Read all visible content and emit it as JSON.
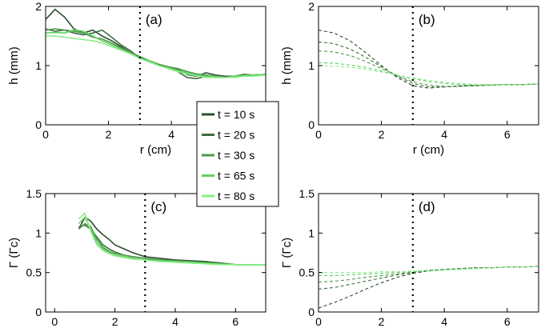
{
  "chart_data": [
    {
      "panel": "(a)",
      "type": "line",
      "xlabel": "r (cm)",
      "ylabel": "h (mm)",
      "xlim": [
        0,
        7
      ],
      "ylim": [
        0,
        2
      ],
      "xticks": [
        "0",
        "2",
        "4",
        ""
      ],
      "yticks": [
        "0",
        "1",
        "2"
      ],
      "vline_x": 3,
      "series": [
        {
          "name": "t = 10 s",
          "color": "#2e4d2e",
          "x": [
            0.0,
            0.3,
            0.6,
            0.9,
            1.2,
            1.5,
            1.8,
            2.1,
            2.4,
            2.7,
            3.0,
            3.3,
            3.6,
            3.9,
            4.2,
            4.5,
            4.8,
            5.1,
            5.4,
            5.7,
            6.0,
            6.3,
            6.6,
            7.0
          ],
          "y": [
            1.78,
            1.95,
            1.82,
            1.62,
            1.55,
            1.6,
            1.5,
            1.42,
            1.32,
            1.22,
            1.15,
            1.08,
            1.02,
            0.98,
            0.94,
            0.85,
            0.82,
            0.88,
            0.84,
            0.82,
            0.82,
            0.85,
            0.84,
            0.85
          ]
        },
        {
          "name": "t = 20 s",
          "color": "#3c6e3c",
          "x": [
            0.0,
            0.3,
            0.6,
            0.9,
            1.2,
            1.5,
            1.8,
            2.1,
            2.4,
            2.7,
            3.0,
            3.3,
            3.6,
            3.9,
            4.2,
            4.5,
            4.8,
            5.1,
            5.4,
            5.7,
            6.0,
            6.3,
            6.6,
            7.0
          ],
          "y": [
            1.62,
            1.58,
            1.6,
            1.55,
            1.52,
            1.55,
            1.6,
            1.48,
            1.35,
            1.25,
            1.12,
            1.08,
            1.02,
            0.95,
            0.9,
            0.8,
            0.78,
            0.82,
            0.8,
            0.8,
            0.82,
            0.84,
            0.84,
            0.85
          ]
        },
        {
          "name": "t = 30 s",
          "color": "#4f9a4f",
          "x": [
            0.0,
            0.3,
            0.6,
            0.9,
            1.2,
            1.5,
            1.8,
            2.1,
            2.4,
            2.7,
            3.0,
            3.3,
            3.6,
            3.9,
            4.2,
            4.5,
            4.8,
            5.1,
            5.4,
            5.7,
            6.0,
            6.3,
            6.6,
            7.0
          ],
          "y": [
            1.6,
            1.62,
            1.6,
            1.58,
            1.55,
            1.48,
            1.45,
            1.38,
            1.3,
            1.22,
            1.15,
            1.08,
            1.02,
            0.98,
            0.95,
            0.9,
            0.86,
            0.84,
            0.82,
            0.8,
            0.82,
            0.84,
            0.84,
            0.85
          ]
        },
        {
          "name": "t = 65 s",
          "color": "#63cf63",
          "x": [
            0.0,
            0.3,
            0.6,
            0.9,
            1.2,
            1.5,
            1.8,
            2.1,
            2.4,
            2.7,
            3.0,
            3.3,
            3.6,
            3.9,
            4.2,
            4.5,
            4.8,
            5.1,
            5.4,
            5.7,
            6.0,
            6.3,
            6.6,
            7.0
          ],
          "y": [
            1.55,
            1.56,
            1.55,
            1.6,
            1.58,
            1.5,
            1.42,
            1.35,
            1.28,
            1.2,
            1.12,
            1.08,
            1.0,
            0.96,
            0.92,
            0.88,
            0.84,
            0.82,
            0.82,
            0.8,
            0.82,
            0.83,
            0.84,
            0.85
          ]
        },
        {
          "name": "t = 80 s",
          "color": "#86ef86",
          "x": [
            0.0,
            0.3,
            0.6,
            0.9,
            1.2,
            1.5,
            1.8,
            2.1,
            2.4,
            2.7,
            3.0,
            3.3,
            3.6,
            3.9,
            4.2,
            4.5,
            4.8,
            5.1,
            5.4,
            5.7,
            6.0,
            6.3,
            6.6,
            7.0
          ],
          "y": [
            1.5,
            1.5,
            1.48,
            1.46,
            1.44,
            1.42,
            1.38,
            1.32,
            1.26,
            1.2,
            1.12,
            1.06,
            1.0,
            0.95,
            0.9,
            0.86,
            0.83,
            0.8,
            0.8,
            0.8,
            0.8,
            0.82,
            0.82,
            0.84
          ]
        }
      ]
    },
    {
      "panel": "(b)",
      "type": "line",
      "xlabel": "r (cm)",
      "ylabel": "h (mm)",
      "xlim": [
        0,
        7
      ],
      "ylim": [
        0,
        2
      ],
      "xticks": [
        "0",
        "2",
        "4",
        "6"
      ],
      "yticks": [
        "0",
        "1",
        "2"
      ],
      "vline_x": 3,
      "dashed": true,
      "series": [
        {
          "name": "t = 10 s",
          "color": "#2e4d2e",
          "x": [
            0,
            0.5,
            1,
            1.5,
            2,
            2.5,
            3,
            3.5,
            4,
            4.5,
            5,
            5.5,
            6,
            6.5,
            7
          ],
          "y": [
            1.6,
            1.55,
            1.42,
            1.22,
            1.0,
            0.8,
            0.66,
            0.62,
            0.64,
            0.66,
            0.67,
            0.67,
            0.68,
            0.68,
            0.69
          ]
        },
        {
          "name": "t = 20 s",
          "color": "#3c6e3c",
          "x": [
            0,
            0.5,
            1,
            1.5,
            2,
            2.5,
            3,
            3.5,
            4,
            4.5,
            5,
            5.5,
            6,
            6.5,
            7
          ],
          "y": [
            1.4,
            1.37,
            1.28,
            1.14,
            0.98,
            0.82,
            0.7,
            0.64,
            0.64,
            0.65,
            0.66,
            0.67,
            0.68,
            0.68,
            0.69
          ]
        },
        {
          "name": "t = 30 s",
          "color": "#4f9a4f",
          "x": [
            0,
            0.5,
            1,
            1.5,
            2,
            2.5,
            3,
            3.5,
            4,
            4.5,
            5,
            5.5,
            6,
            6.5,
            7
          ],
          "y": [
            1.25,
            1.23,
            1.17,
            1.07,
            0.95,
            0.83,
            0.73,
            0.67,
            0.65,
            0.65,
            0.66,
            0.67,
            0.68,
            0.68,
            0.69
          ]
        },
        {
          "name": "t = 65 s",
          "color": "#63cf63",
          "x": [
            0,
            0.5,
            1,
            1.5,
            2,
            2.5,
            3,
            3.5,
            4,
            4.5,
            5,
            5.5,
            6,
            6.5,
            7
          ],
          "y": [
            1.05,
            1.04,
            1.01,
            0.97,
            0.91,
            0.84,
            0.78,
            0.73,
            0.7,
            0.68,
            0.67,
            0.67,
            0.68,
            0.68,
            0.69
          ]
        },
        {
          "name": "t = 80 s",
          "color": "#86ef86",
          "x": [
            0,
            0.5,
            1,
            1.5,
            2,
            2.5,
            3,
            3.5,
            4,
            4.5,
            5,
            5.5,
            6,
            6.5,
            7
          ],
          "y": [
            1.0,
            0.99,
            0.97,
            0.94,
            0.89,
            0.84,
            0.79,
            0.75,
            0.72,
            0.7,
            0.68,
            0.68,
            0.68,
            0.68,
            0.69
          ]
        }
      ]
    },
    {
      "panel": "(c)",
      "type": "line",
      "xlabel": "r (cm)",
      "ylabel": "Γ (Γc)",
      "xlim": [
        -0.3,
        7
      ],
      "ylim": [
        0,
        1.5
      ],
      "xticks": [
        "0",
        "2",
        "4",
        "6"
      ],
      "yticks": [
        "0",
        "0.5",
        "1",
        "1.5"
      ],
      "vline_x": 3,
      "series": [
        {
          "name": "t = 10 s",
          "color": "#2e4d2e",
          "x": [
            0.8,
            1.0,
            1.2,
            1.4,
            1.6,
            1.8,
            2.0,
            2.3,
            2.6,
            3.0,
            3.5,
            4.0,
            4.5,
            5.0,
            5.5,
            6.0,
            6.5,
            7.0
          ],
          "y": [
            1.05,
            1.2,
            1.15,
            1.05,
            0.98,
            0.92,
            0.85,
            0.8,
            0.75,
            0.7,
            0.68,
            0.66,
            0.65,
            0.64,
            0.62,
            0.6,
            0.6,
            0.6
          ]
        },
        {
          "name": "t = 20 s",
          "color": "#3c6e3c",
          "x": [
            0.8,
            1.0,
            1.2,
            1.4,
            1.6,
            1.8,
            2.0,
            2.3,
            2.6,
            3.0,
            3.5,
            4.0,
            4.5,
            5.0,
            5.5,
            6.0,
            6.5,
            7.0
          ],
          "y": [
            1.08,
            1.1,
            1.05,
            0.95,
            0.85,
            0.8,
            0.76,
            0.72,
            0.7,
            0.68,
            0.66,
            0.65,
            0.64,
            0.63,
            0.62,
            0.6,
            0.6,
            0.6
          ]
        },
        {
          "name": "t = 30 s",
          "color": "#4f9a4f",
          "x": [
            0.8,
            1.0,
            1.2,
            1.4,
            1.6,
            1.8,
            2.0,
            2.3,
            2.6,
            3.0,
            3.5,
            4.0,
            4.5,
            5.0,
            5.5,
            6.0,
            6.5,
            7.0
          ],
          "y": [
            1.05,
            1.12,
            1.08,
            0.92,
            0.82,
            0.77,
            0.74,
            0.72,
            0.7,
            0.68,
            0.66,
            0.65,
            0.64,
            0.62,
            0.61,
            0.6,
            0.6,
            0.6
          ]
        },
        {
          "name": "t = 65 s",
          "color": "#63cf63",
          "x": [
            0.8,
            1.0,
            1.2,
            1.4,
            1.6,
            1.8,
            2.0,
            2.3,
            2.6,
            3.0,
            3.5,
            4.0,
            4.5,
            5.0,
            5.5,
            6.0,
            6.5,
            7.0
          ],
          "y": [
            1.12,
            1.2,
            1.05,
            0.88,
            0.8,
            0.75,
            0.72,
            0.7,
            0.68,
            0.66,
            0.65,
            0.64,
            0.63,
            0.62,
            0.61,
            0.6,
            0.6,
            0.6
          ]
        },
        {
          "name": "t = 80 s",
          "color": "#86ef86",
          "x": [
            0.8,
            1.0,
            1.2,
            1.4,
            1.6,
            1.8,
            2.0,
            2.3,
            2.6,
            3.0,
            3.5,
            4.0,
            4.5,
            5.0,
            5.5,
            6.0,
            6.5,
            7.0
          ],
          "y": [
            1.18,
            1.25,
            1.02,
            0.85,
            0.78,
            0.74,
            0.71,
            0.69,
            0.67,
            0.66,
            0.64,
            0.63,
            0.62,
            0.61,
            0.6,
            0.6,
            0.6,
            0.6
          ]
        }
      ]
    },
    {
      "panel": "(d)",
      "type": "line",
      "xlabel": "r (cm)",
      "ylabel": "Γ (Γc)",
      "xlim": [
        0,
        7
      ],
      "ylim": [
        0,
        1.5
      ],
      "xticks": [
        "0",
        "2",
        "4",
        "6"
      ],
      "yticks": [
        "0",
        "0.5",
        "1",
        "1.5"
      ],
      "vline_x": 3,
      "dashed": true,
      "series": [
        {
          "name": "t = 10 s",
          "color": "#2e4d2e",
          "x": [
            0,
            0.5,
            1,
            1.5,
            2,
            2.5,
            3,
            3.5,
            4,
            4.5,
            5,
            5.5,
            6,
            6.5,
            7
          ],
          "y": [
            0.05,
            0.12,
            0.2,
            0.29,
            0.37,
            0.44,
            0.49,
            0.52,
            0.54,
            0.55,
            0.56,
            0.56,
            0.57,
            0.57,
            0.58
          ]
        },
        {
          "name": "t = 20 s",
          "color": "#3c6e3c",
          "x": [
            0,
            0.5,
            1,
            1.5,
            2,
            2.5,
            3,
            3.5,
            4,
            4.5,
            5,
            5.5,
            6,
            6.5,
            7
          ],
          "y": [
            0.29,
            0.31,
            0.35,
            0.39,
            0.43,
            0.47,
            0.5,
            0.52,
            0.54,
            0.55,
            0.56,
            0.56,
            0.57,
            0.57,
            0.58
          ]
        },
        {
          "name": "t = 30 s",
          "color": "#4f9a4f",
          "x": [
            0,
            0.5,
            1,
            1.5,
            2,
            2.5,
            3,
            3.5,
            4,
            4.5,
            5,
            5.5,
            6,
            6.5,
            7
          ],
          "y": [
            0.38,
            0.39,
            0.41,
            0.44,
            0.46,
            0.48,
            0.51,
            0.53,
            0.54,
            0.55,
            0.56,
            0.56,
            0.57,
            0.57,
            0.58
          ]
        },
        {
          "name": "t = 65 s",
          "color": "#63cf63",
          "x": [
            0,
            0.5,
            1,
            1.5,
            2,
            2.5,
            3,
            3.5,
            4,
            4.5,
            5,
            5.5,
            6,
            6.5,
            7
          ],
          "y": [
            0.46,
            0.46,
            0.47,
            0.48,
            0.49,
            0.5,
            0.51,
            0.52,
            0.53,
            0.54,
            0.55,
            0.56,
            0.57,
            0.57,
            0.58
          ]
        },
        {
          "name": "t = 80 s",
          "color": "#86ef86",
          "x": [
            0,
            0.5,
            1,
            1.5,
            2,
            2.5,
            3,
            3.5,
            4,
            4.5,
            5,
            5.5,
            6,
            6.5,
            7
          ],
          "y": [
            0.5,
            0.5,
            0.5,
            0.5,
            0.51,
            0.51,
            0.52,
            0.52,
            0.53,
            0.54,
            0.55,
            0.56,
            0.57,
            0.57,
            0.58
          ]
        }
      ]
    }
  ],
  "legend": {
    "entries": [
      {
        "label": "t = 10 s",
        "color": "#2e4d2e"
      },
      {
        "label": "t = 20 s",
        "color": "#3c6e3c"
      },
      {
        "label": "t = 30 s",
        "color": "#4f9a4f"
      },
      {
        "label": "t = 65 s",
        "color": "#63cf63"
      },
      {
        "label": "t = 80 s",
        "color": "#86ef86"
      }
    ]
  }
}
